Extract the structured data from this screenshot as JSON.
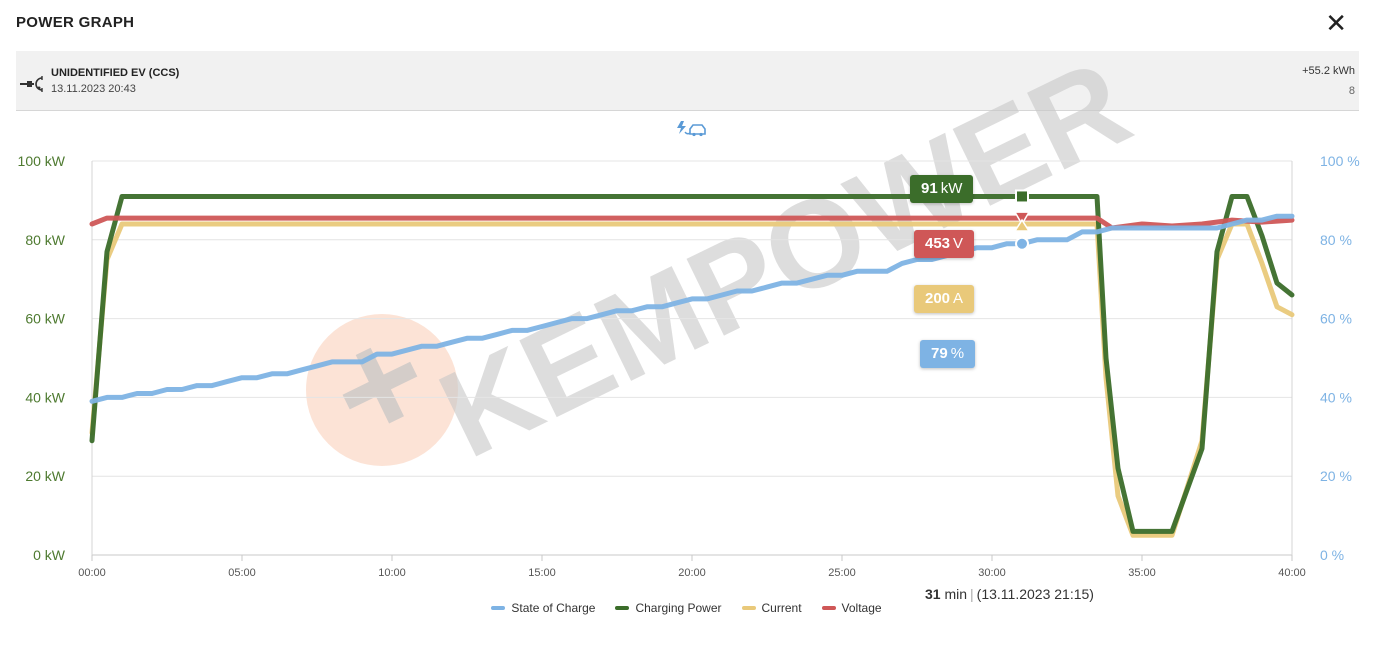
{
  "header": {
    "title": "POWER GRAPH",
    "close_label": "✕"
  },
  "session": {
    "plug_icon": "ccs-plug-icon",
    "ev_name": "UNIDENTIFIED EV (CCS)",
    "start_time": "13.11.2023 20:43",
    "energy": "+55.2 kWh",
    "count": "8"
  },
  "watermark": "KEMPOWER",
  "mode_icon": "charging-car-icon",
  "cursor": {
    "minute": 31,
    "power": {
      "value": "91",
      "unit": "kW"
    },
    "voltage": {
      "value": "453",
      "unit": "V"
    },
    "current": {
      "value": "200",
      "unit": "A"
    },
    "soc": {
      "value": "79",
      "unit": "%"
    },
    "duration_value": "31",
    "duration_unit": "min",
    "timestamp": "(13.11.2023 21:15)"
  },
  "colors": {
    "soc": "#7eb3e4",
    "power": "#3b6d2a",
    "current": "#e9c97a",
    "voltage": "#cf5757",
    "left_axis": "#4e7a30",
    "right_axis": "#7eb3e4"
  },
  "chart_data": {
    "type": "line",
    "x_unit": "minutes",
    "xlim": [
      0,
      40
    ],
    "x_ticks": [
      "00:00",
      "05:00",
      "10:00",
      "15:00",
      "20:00",
      "25:00",
      "30:00",
      "35:00",
      "40:00"
    ],
    "y_left": {
      "ticks": [
        "0 kW",
        "20 kW",
        "40 kW",
        "60 kW",
        "80 kW",
        "100 kW"
      ],
      "ylim": [
        0,
        100
      ]
    },
    "y_right": {
      "ticks": [
        "0 %",
        "20 %",
        "40 %",
        "60 %",
        "80 %",
        "100 %"
      ],
      "ylim": [
        0,
        100
      ]
    },
    "grid": true,
    "legend_position": "bottom",
    "series": [
      {
        "name": "State of Charge",
        "color": "#7eb3e4",
        "axis": "right",
        "points": [
          [
            0,
            39
          ],
          [
            0.5,
            40
          ],
          [
            1,
            40
          ],
          [
            1.5,
            41
          ],
          [
            2,
            41
          ],
          [
            2.5,
            42
          ],
          [
            3,
            42
          ],
          [
            3.5,
            43
          ],
          [
            4,
            43
          ],
          [
            4.5,
            44
          ],
          [
            5,
            45
          ],
          [
            5.5,
            45
          ],
          [
            6,
            46
          ],
          [
            6.5,
            46
          ],
          [
            7,
            47
          ],
          [
            7.5,
            48
          ],
          [
            8,
            49
          ],
          [
            9,
            49
          ],
          [
            9.5,
            51
          ],
          [
            10,
            51
          ],
          [
            11,
            53
          ],
          [
            11.5,
            53
          ],
          [
            12,
            54
          ],
          [
            12.5,
            55
          ],
          [
            13,
            55
          ],
          [
            13.5,
            56
          ],
          [
            14,
            57
          ],
          [
            14.5,
            57
          ],
          [
            15,
            58
          ],
          [
            15.5,
            59
          ],
          [
            16,
            60
          ],
          [
            16.5,
            60
          ],
          [
            17,
            61
          ],
          [
            17.5,
            62
          ],
          [
            18,
            62
          ],
          [
            18.5,
            63
          ],
          [
            19,
            63
          ],
          [
            19.5,
            64
          ],
          [
            20,
            65
          ],
          [
            20.5,
            65
          ],
          [
            21,
            66
          ],
          [
            21.5,
            67
          ],
          [
            22,
            67
          ],
          [
            22.5,
            68
          ],
          [
            23,
            69
          ],
          [
            23.5,
            69
          ],
          [
            24,
            70
          ],
          [
            24.5,
            71
          ],
          [
            25,
            71
          ],
          [
            25.5,
            72
          ],
          [
            26,
            72
          ],
          [
            26.5,
            72
          ],
          [
            27,
            74
          ],
          [
            27.5,
            75
          ],
          [
            28,
            75
          ],
          [
            29,
            77
          ],
          [
            29.5,
            78
          ],
          [
            30,
            78
          ],
          [
            30.5,
            79
          ],
          [
            31,
            79
          ],
          [
            31.5,
            80
          ],
          [
            32,
            80
          ],
          [
            32.5,
            80
          ],
          [
            33,
            82
          ],
          [
            33.5,
            82
          ],
          [
            34,
            83
          ],
          [
            35,
            83
          ],
          [
            36,
            83
          ],
          [
            37,
            83
          ],
          [
            37.5,
            83
          ],
          [
            38,
            84
          ],
          [
            38.5,
            85
          ],
          [
            39,
            85
          ],
          [
            39.5,
            86
          ],
          [
            40,
            86
          ]
        ]
      },
      {
        "name": "Charging Power",
        "color": "#3b6d2a",
        "axis": "left",
        "points": [
          [
            0,
            29
          ],
          [
            0.5,
            77
          ],
          [
            1,
            91
          ],
          [
            33.5,
            91
          ],
          [
            33.8,
            50
          ],
          [
            34.2,
            22
          ],
          [
            34.7,
            6
          ],
          [
            36,
            6
          ],
          [
            37,
            27
          ],
          [
            37.5,
            77
          ],
          [
            38,
            91
          ],
          [
            38.5,
            91
          ],
          [
            39,
            81
          ],
          [
            39.5,
            69
          ],
          [
            40,
            66
          ]
        ]
      },
      {
        "name": "Current",
        "color": "#e9c97a",
        "axis": "left",
        "points": [
          [
            0,
            31
          ],
          [
            0.5,
            75
          ],
          [
            1,
            84
          ],
          [
            33.5,
            84
          ],
          [
            33.8,
            45
          ],
          [
            34.2,
            15
          ],
          [
            34.7,
            5
          ],
          [
            36,
            5
          ],
          [
            37,
            29
          ],
          [
            37.5,
            75
          ],
          [
            38,
            84
          ],
          [
            38.5,
            84
          ],
          [
            39,
            74
          ],
          [
            39.5,
            63
          ],
          [
            40,
            61
          ]
        ]
      },
      {
        "name": "Voltage",
        "color": "#cf5757",
        "axis": "left",
        "points": [
          [
            0,
            84
          ],
          [
            0.5,
            85.5
          ],
          [
            1,
            85.5
          ],
          [
            33.5,
            85.5
          ],
          [
            34,
            83
          ],
          [
            35,
            84
          ],
          [
            36,
            83.5
          ],
          [
            37,
            84
          ],
          [
            38,
            85
          ],
          [
            39,
            84.5
          ],
          [
            40,
            85
          ]
        ]
      }
    ]
  }
}
